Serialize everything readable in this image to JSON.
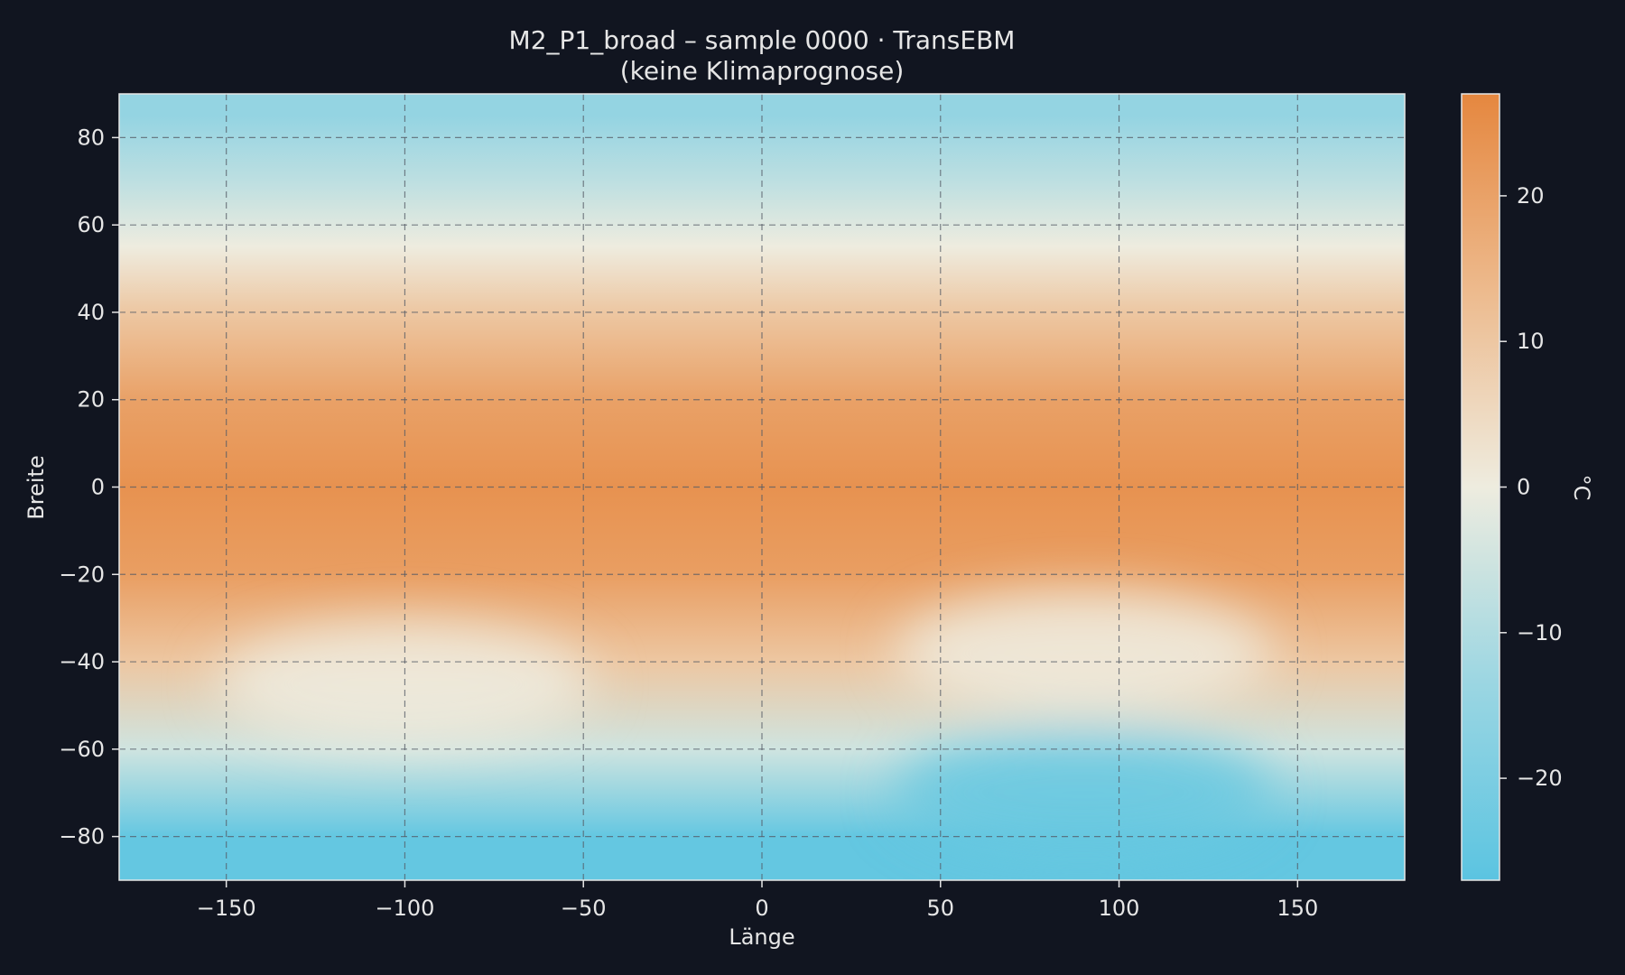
{
  "chart_data": {
    "type": "heatmap",
    "title": "M2_P1_broad – sample 0000 · TransEBM",
    "subtitle": "(keine Klimaprognose)",
    "xlabel": "Länge",
    "ylabel": "Breite",
    "xlim": [
      -180,
      180
    ],
    "ylim": [
      -90,
      90
    ],
    "xticks": [
      -150,
      -100,
      -50,
      0,
      50,
      100,
      150
    ],
    "yticks": [
      80,
      60,
      40,
      20,
      0,
      -20,
      -40,
      -60,
      -80
    ],
    "grid": true,
    "colorbar": {
      "label": "°C",
      "range": [
        -27,
        27
      ],
      "ticks": [
        20,
        10,
        0,
        -10,
        -20
      ],
      "colors": [
        "#5bc4e1",
        "#9bd6e2",
        "#eeecdf",
        "#edba8d",
        "#e5873f"
      ]
    },
    "field_description_by_latitude": [
      {
        "lat": 85,
        "value": -15
      },
      {
        "lat": 70,
        "value": -8
      },
      {
        "lat": 55,
        "value": 0
      },
      {
        "lat": 40,
        "value": 10
      },
      {
        "lat": 20,
        "value": 20
      },
      {
        "lat": 0,
        "value": 24
      },
      {
        "lat": -20,
        "value": 21
      },
      {
        "lat": -40,
        "value": 10
      },
      {
        "lat": -60,
        "value": -5
      },
      {
        "lat": -80,
        "value": -25
      }
    ],
    "anomalies": [
      {
        "lon": 90,
        "lat": -70,
        "value": -24
      },
      {
        "lon": -100,
        "lat": -45,
        "value": 0
      },
      {
        "lon": 90,
        "lat": -38,
        "value": 0
      }
    ]
  }
}
